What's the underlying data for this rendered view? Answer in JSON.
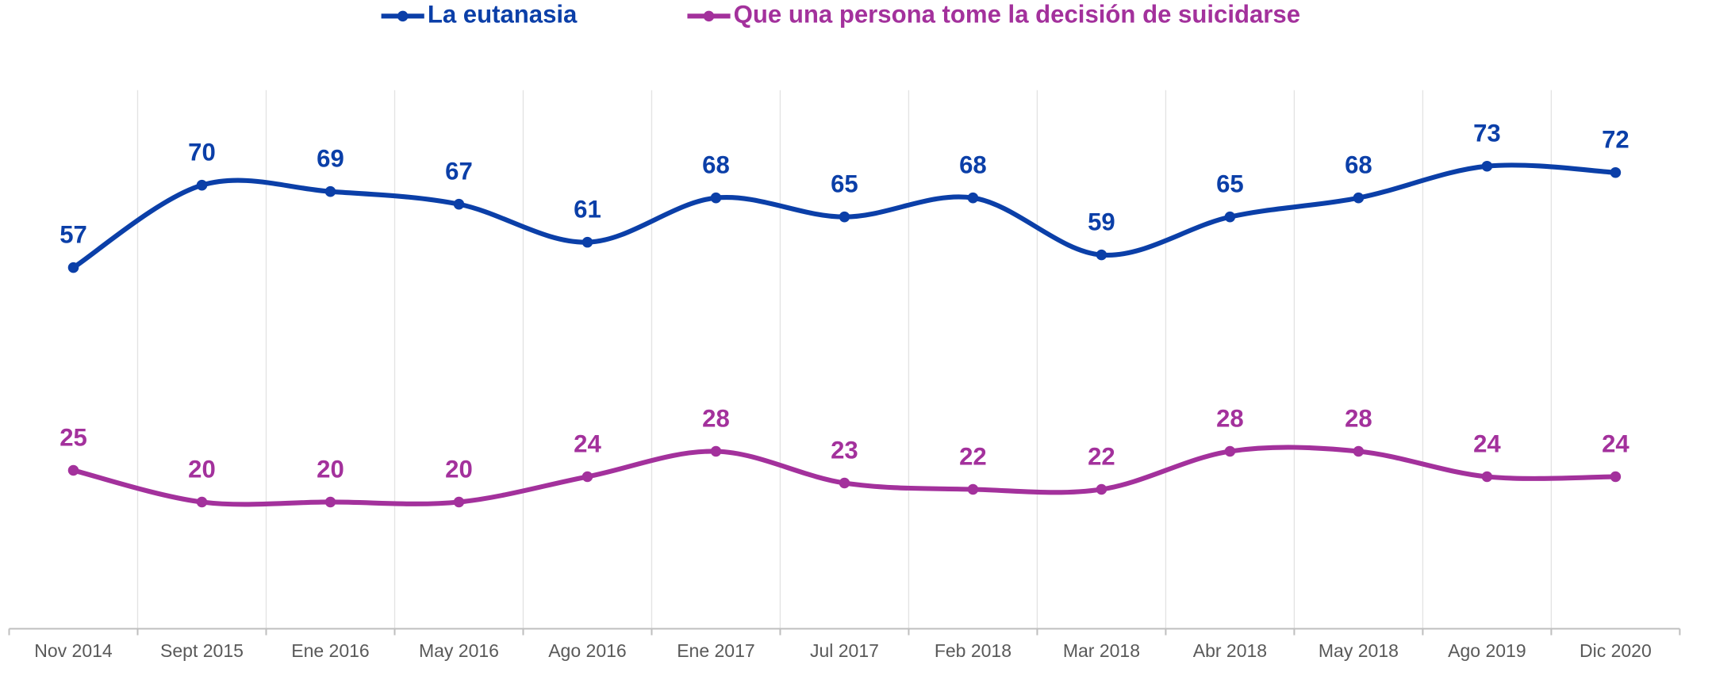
{
  "chart_data": {
    "type": "line",
    "categories": [
      "Nov 2014",
      "Sept 2015",
      "Ene 2016",
      "May 2016",
      "Ago 2016",
      "Ene 2017",
      "Jul 2017",
      "Feb 2018",
      "Mar 2018",
      "Abr 2018",
      "May 2018",
      "Ago 2019",
      "Dic 2020"
    ],
    "series": [
      {
        "name": "La eutanasia",
        "color": "#0b3fa8",
        "values": [
          57,
          70,
          69,
          67,
          61,
          68,
          65,
          68,
          59,
          65,
          68,
          73,
          72
        ]
      },
      {
        "name": "Que una persona tome la decisión de suicidarse",
        "color": "#a3319c",
        "values": [
          25,
          20,
          20,
          20,
          24,
          28,
          23,
          22,
          22,
          28,
          28,
          24,
          24
        ]
      }
    ],
    "ylim": [
      0,
      85
    ],
    "grid": true,
    "legend": "top"
  }
}
